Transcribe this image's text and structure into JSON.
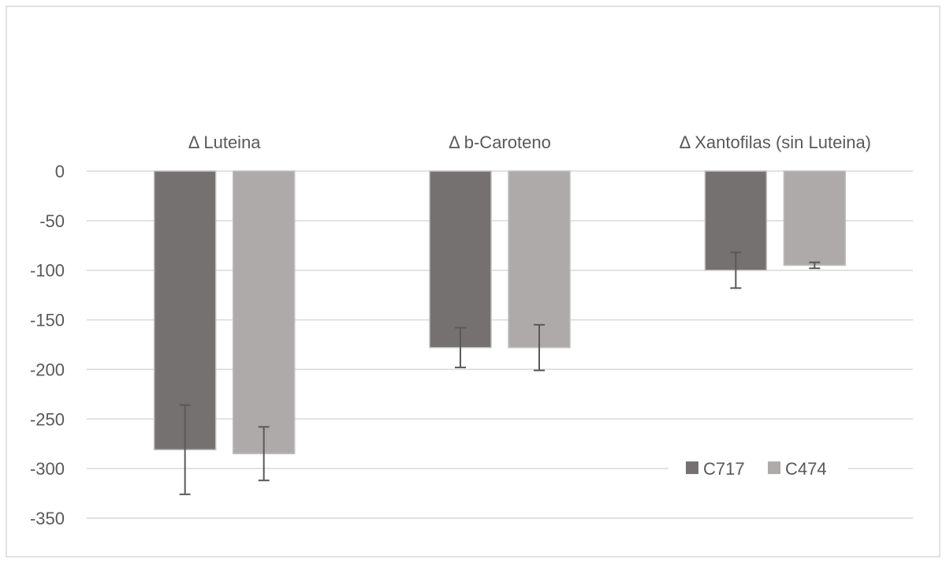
{
  "chart_data": {
    "type": "bar",
    "title": "",
    "xlabel": "",
    "ylabel": "",
    "categories": [
      "Δ Luteina",
      "Δ b-Caroteno",
      "Δ Xantofilas (sin Luteina)"
    ],
    "series": [
      {
        "name": "C717",
        "values": [
          -281,
          -178,
          -100
        ],
        "error": [
          45,
          20,
          18
        ],
        "color": "#767171"
      },
      {
        "name": "C474",
        "values": [
          -285,
          -178,
          -95
        ],
        "error": [
          27,
          23,
          3
        ],
        "color": "#aeaaaa"
      }
    ],
    "yticks": [
      0,
      -50,
      -100,
      -150,
      -200,
      -250,
      -300,
      -350
    ],
    "ylim": [
      -350,
      0
    ],
    "grid": true,
    "category_labels_position": "top",
    "legend_position": "bottom-right"
  }
}
